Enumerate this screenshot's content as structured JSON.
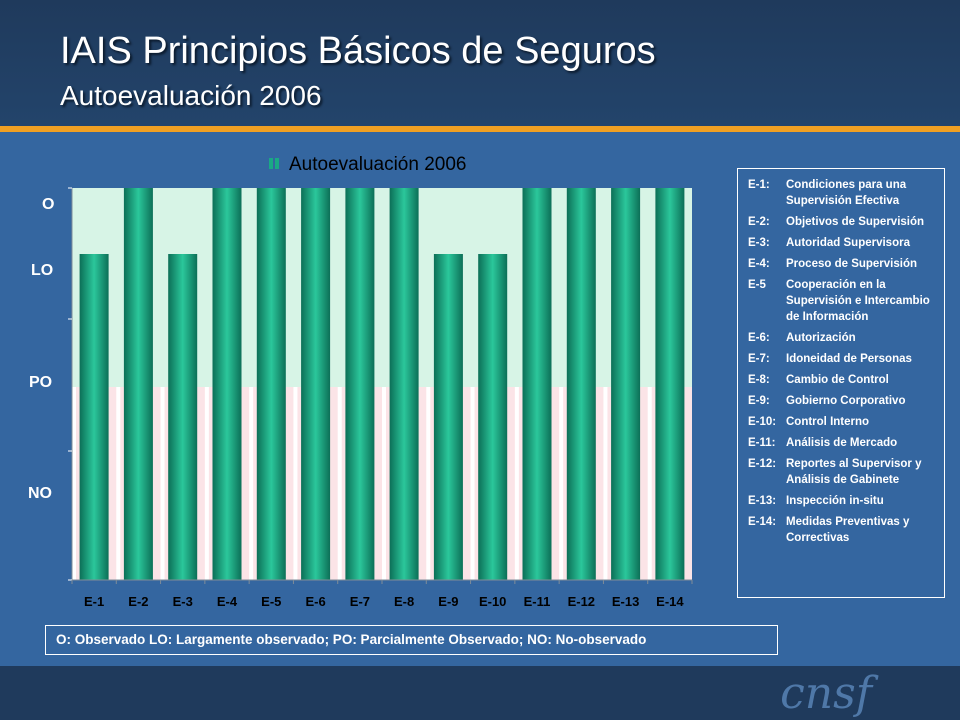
{
  "header": {
    "title": "IAIS Principios Básicos de Seguros",
    "subtitle": "Autoevaluación  2006"
  },
  "chart_data": {
    "type": "bar",
    "title": "Autoevaluación 2006",
    "legend_entry": "Autoevaluación 2006",
    "categories": [
      "E-1",
      "E-2",
      "E-3",
      "E-4",
      "E-5",
      "E-6",
      "E-7",
      "E-8",
      "E-9",
      "E-10",
      "E-11",
      "E-12",
      "E-13",
      "E-14"
    ],
    "y_levels": [
      "NO",
      "PO",
      "LO",
      "O"
    ],
    "values": [
      "LO",
      "O",
      "LO",
      "O",
      "O",
      "O",
      "O",
      "O",
      "LO",
      "LO",
      "O",
      "O",
      "O",
      "O"
    ],
    "grid": false,
    "colors": {
      "bar_dark": "#0c6f57",
      "bar_mid": "#1aa985",
      "bar_light": "#2bc79b",
      "upper_band": "#d7f4e6",
      "lower_band": "#fbe4e7",
      "gap_band": "#ffffff"
    }
  },
  "criteria_legend": [
    {
      "code": "E-1:",
      "text": "Condiciones para una Supervisión Efectiva"
    },
    {
      "code": "E-2:",
      "text": "Objetivos de Supervisión"
    },
    {
      "code": "E-3:",
      "text": "Autoridad Supervisora"
    },
    {
      "code": "E-4:",
      "text": "Proceso de Supervisión"
    },
    {
      "code": "E-5",
      "text": "Cooperación en la Supervisión e Intercambio de Información"
    },
    {
      "code": "E-6:",
      "text": "Autorización"
    },
    {
      "code": "E-7:",
      "text": "Idoneidad de Personas"
    },
    {
      "code": "E-8:",
      "text": "Cambio de Control"
    },
    {
      "code": "E-9:",
      "text": "Gobierno Corporativo"
    },
    {
      "code": "E-10:",
      "text": "Control Interno"
    },
    {
      "code": "E-11:",
      "text": "Análisis de Mercado"
    },
    {
      "code": "E-12:",
      "text": "Reportes al Supervisor y Análisis de Gabinete"
    },
    {
      "code": "E-13:",
      "text": "Inspección in-situ"
    },
    {
      "code": "E-14:",
      "text": "Medidas Preventivas y Correctivas"
    }
  ],
  "bottom_legend": "O: Observado  LO: Largamente observado;  PO: Parcialmente Observado;  NO: No-observado",
  "logo_text": "cnsf"
}
